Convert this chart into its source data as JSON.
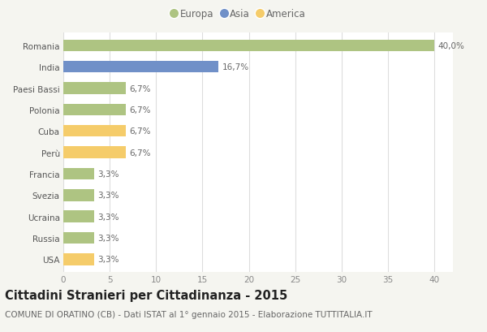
{
  "countries": [
    "Romania",
    "India",
    "Paesi Bassi",
    "Polonia",
    "Cuba",
    "Perù",
    "Francia",
    "Svezia",
    "Ucraina",
    "Russia",
    "USA"
  ],
  "values": [
    40.0,
    16.7,
    6.7,
    6.7,
    6.7,
    6.7,
    3.3,
    3.3,
    3.3,
    3.3,
    3.3
  ],
  "labels": [
    "40,0%",
    "16,7%",
    "6,7%",
    "6,7%",
    "6,7%",
    "6,7%",
    "3,3%",
    "3,3%",
    "3,3%",
    "3,3%",
    "3,3%"
  ],
  "continents": [
    "Europa",
    "Asia",
    "Europa",
    "Europa",
    "America",
    "America",
    "Europa",
    "Europa",
    "Europa",
    "Europa",
    "America"
  ],
  "colors": {
    "Europa": "#aec482",
    "Asia": "#7090c8",
    "America": "#f5cc6a"
  },
  "legend_order": [
    "Europa",
    "Asia",
    "America"
  ],
  "title": "Cittadini Stranieri per Cittadinanza - 2015",
  "subtitle": "COMUNE DI ORATINO (CB) - Dati ISTAT al 1° gennaio 2015 - Elaborazione TUTTITALIA.IT",
  "xlim": [
    0,
    42
  ],
  "xticks": [
    0,
    5,
    10,
    15,
    20,
    25,
    30,
    35,
    40
  ],
  "background_color": "#f5f5f0",
  "plot_bg_color": "#ffffff",
  "grid_color": "#dddddd",
  "title_fontsize": 10.5,
  "subtitle_fontsize": 7.5,
  "label_fontsize": 7.5,
  "tick_fontsize": 7.5,
  "legend_fontsize": 8.5
}
